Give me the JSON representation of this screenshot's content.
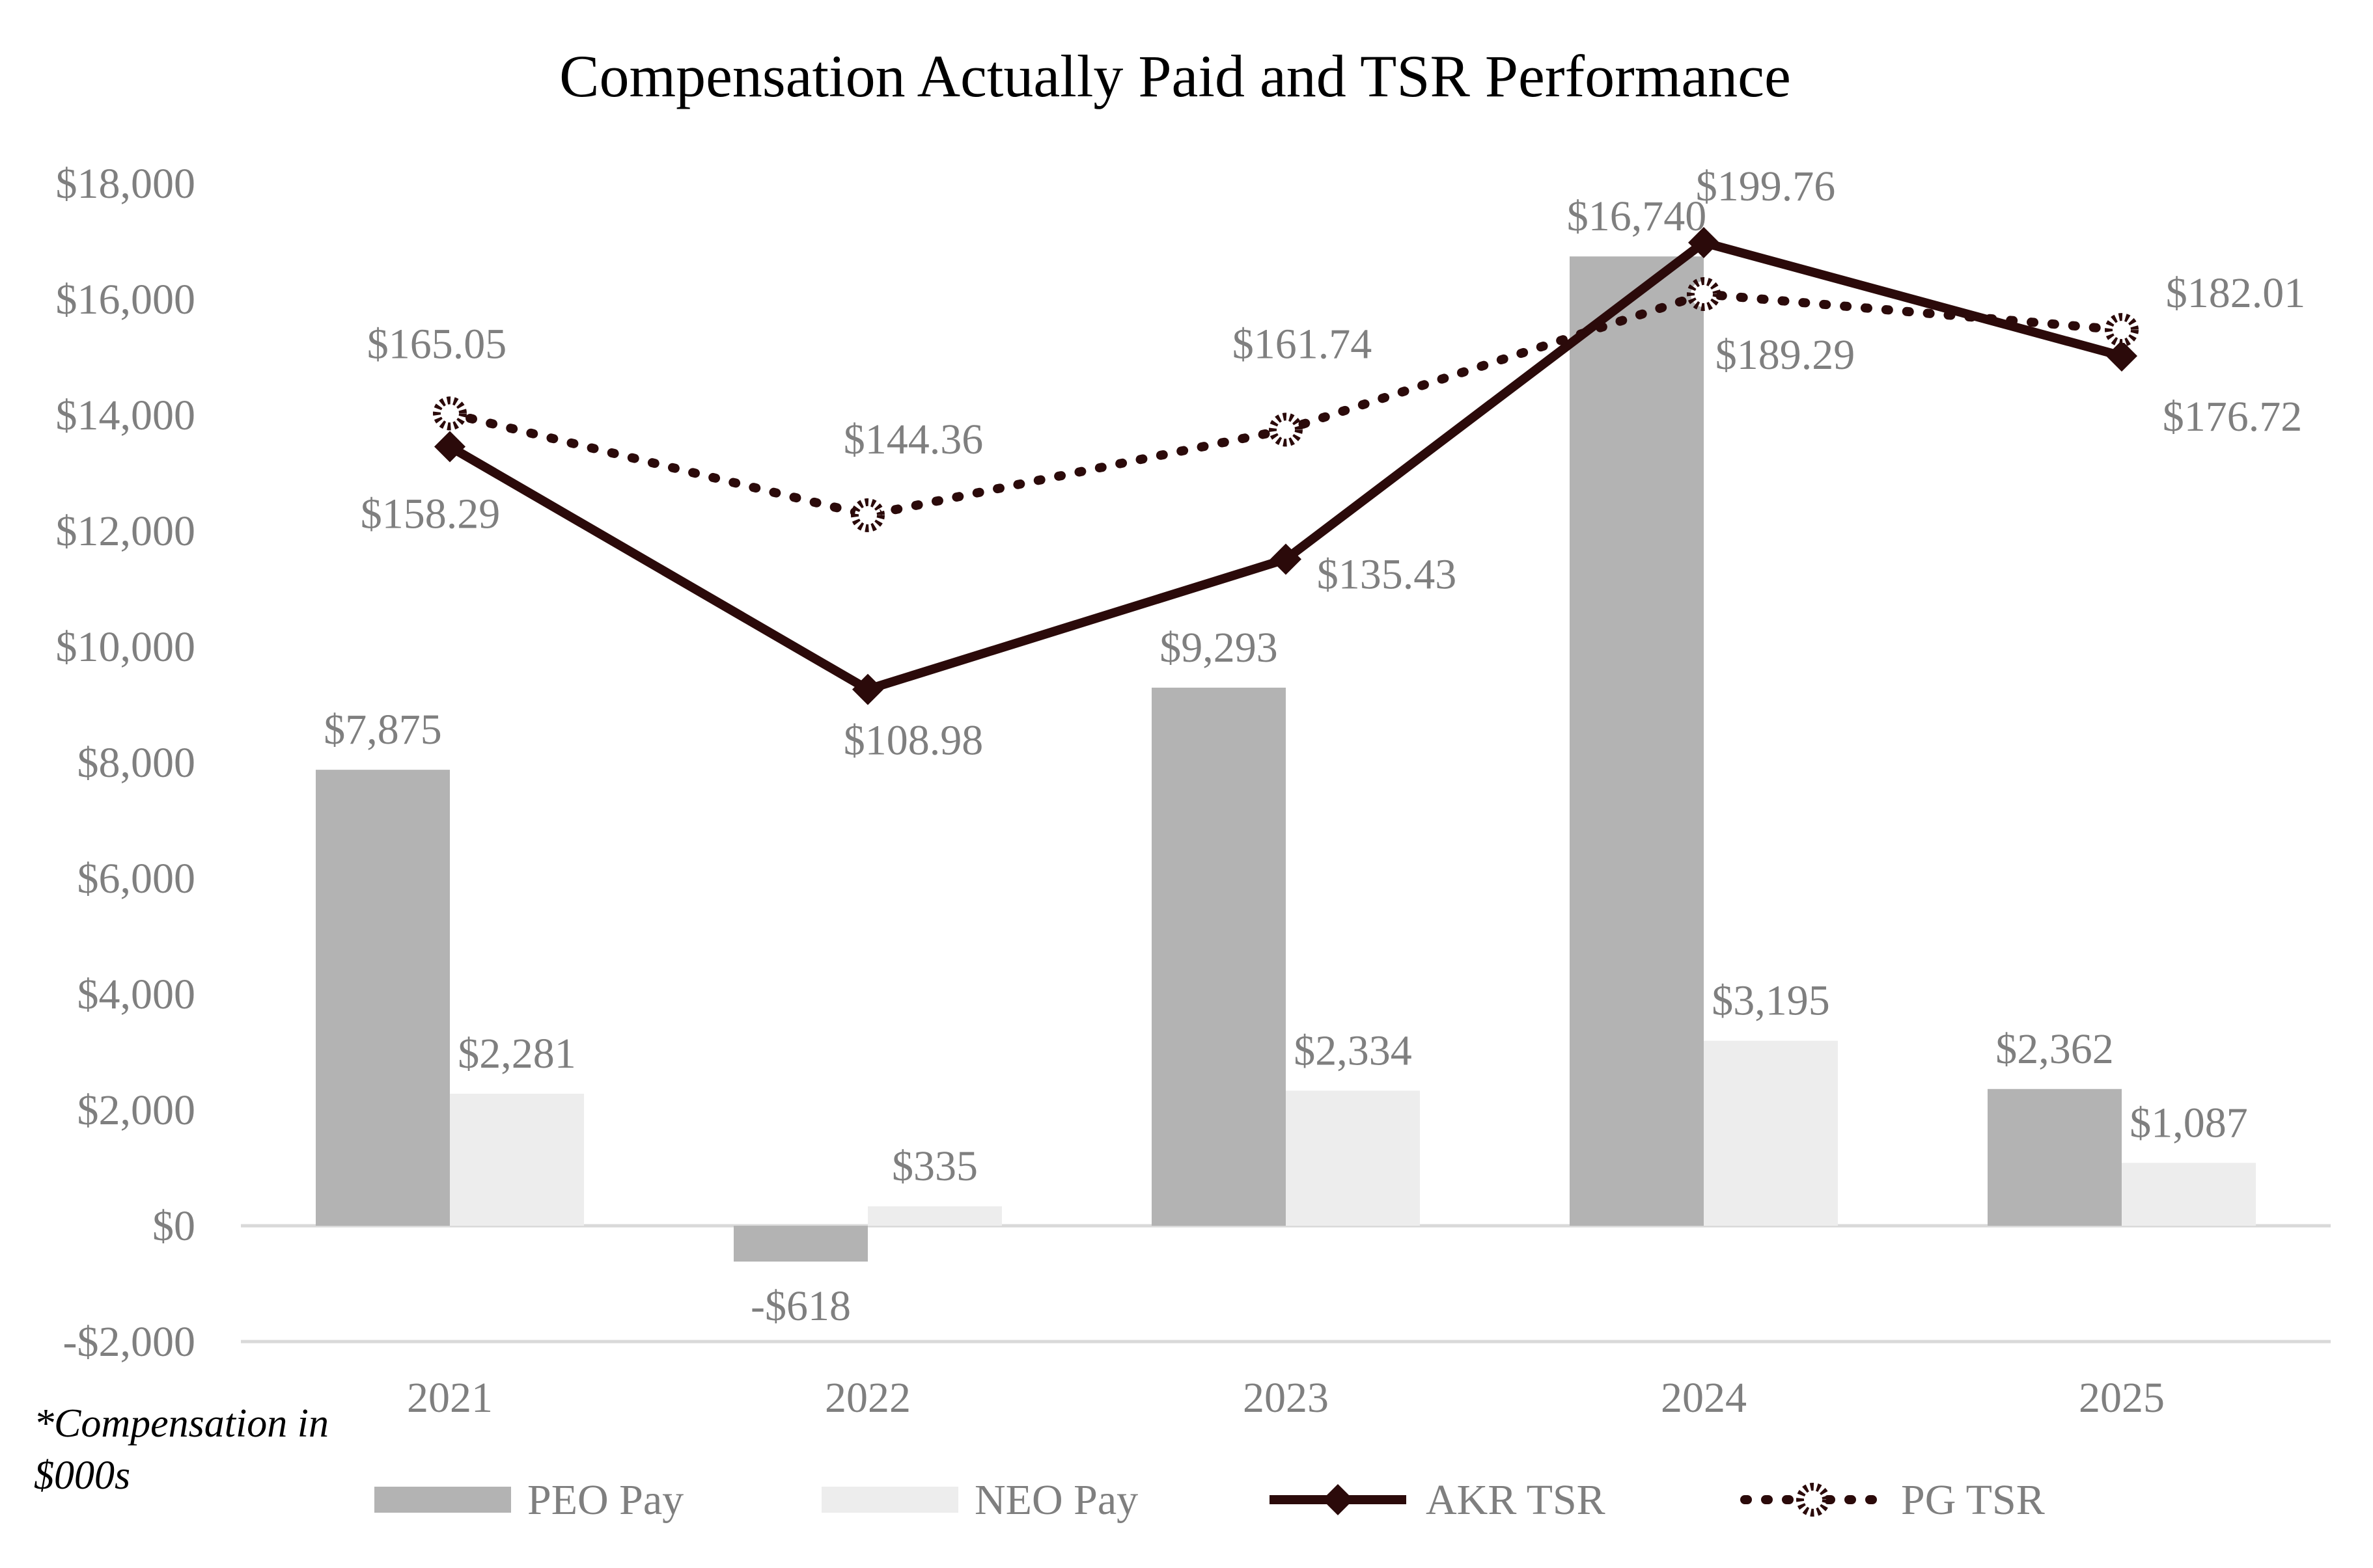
{
  "chart_data": {
    "type": "bar",
    "title": "Compensation Actually Paid and TSR Performance",
    "categories": [
      "2021",
      "2022",
      "2023",
      "2024",
      "2025"
    ],
    "ylim": [
      -2000,
      18000
    ],
    "yticks": [
      -2000,
      0,
      2000,
      4000,
      6000,
      8000,
      10000,
      12000,
      14000,
      16000,
      18000
    ],
    "ytick_labels": [
      "-$2,000",
      "$0",
      "$2,000",
      "$4,000",
      "$6,000",
      "$8,000",
      "$10,000",
      "$12,000",
      "$14,000",
      "$16,000",
      "$18,000"
    ],
    "grid": false,
    "legend_position": "bottom",
    "bar_series": [
      {
        "name": "PEO Pay",
        "color": "#b3b3b3",
        "values": [
          7875,
          -618,
          9293,
          16740,
          2362
        ],
        "labels": [
          "$7,875",
          "-$618",
          "$9,293",
          "$16,740",
          "$2,362"
        ]
      },
      {
        "name": "NEO Pay",
        "color": "#ededed",
        "values": [
          2281,
          335,
          2334,
          3195,
          1087
        ],
        "labels": [
          "$2,281",
          "$335",
          "$2,334",
          "$3,195",
          "$1,087"
        ]
      }
    ],
    "line_series": [
      {
        "name": "AKR TSR",
        "style": "solid",
        "marker": "diamond",
        "color": "#2b0a0a",
        "values": [
          158.29,
          108.98,
          135.43,
          199.76,
          176.72
        ],
        "labels": [
          "$158.29",
          "$108.98",
          "$135.43",
          "$199.76",
          "$176.72"
        ]
      },
      {
        "name": "PG TSR",
        "style": "dotted",
        "marker": "circle",
        "color": "#2b0a0a",
        "values": [
          165.05,
          144.36,
          161.74,
          189.29,
          182.01
        ],
        "labels": [
          "$165.05",
          "$144.36",
          "$161.74",
          "$189.29",
          "$182.01"
        ]
      }
    ],
    "footnote": "*Compensation in $000s"
  }
}
